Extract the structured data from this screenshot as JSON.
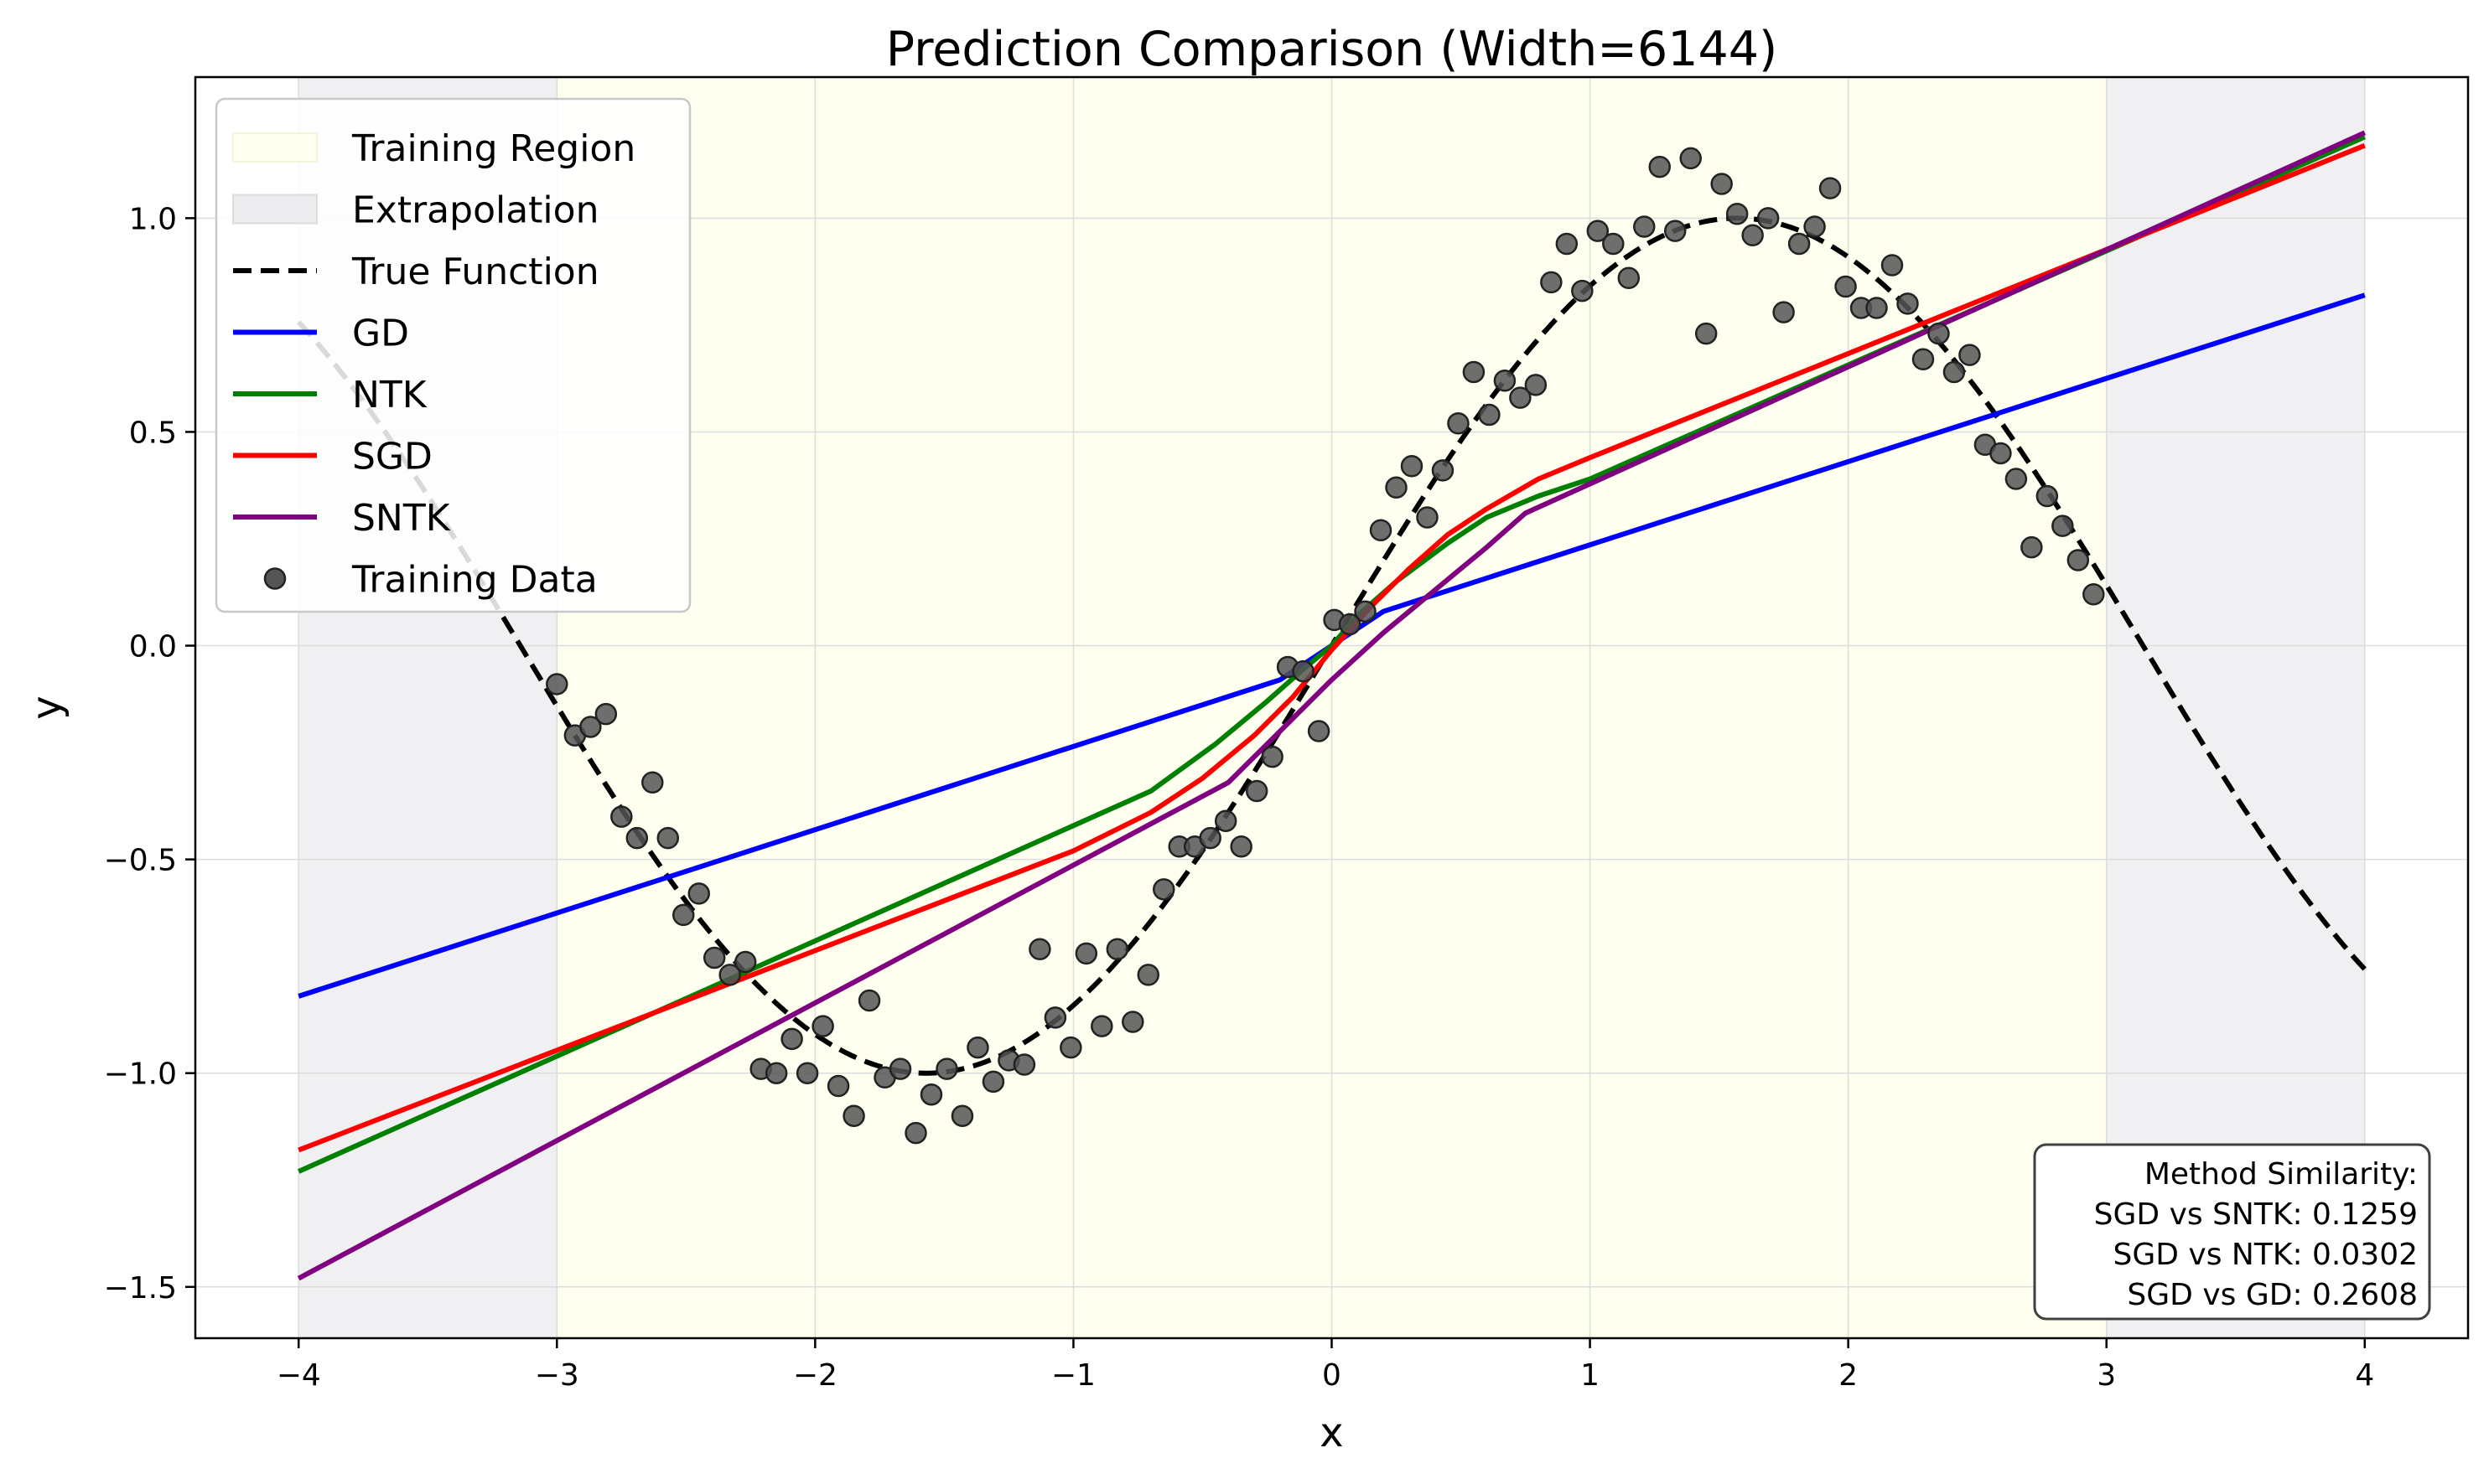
{
  "chart_data": {
    "type": "line",
    "title": "Prediction Comparison (Width=6144)",
    "xlabel": "x",
    "ylabel": "y",
    "xlim": [
      -4.4,
      4.4
    ],
    "ylim": [
      -1.62,
      1.33
    ],
    "grid": true,
    "x_ticks": [
      -4,
      -3,
      -2,
      -1,
      0,
      1,
      2,
      3,
      4
    ],
    "x_tick_labels": [
      "−4",
      "−3",
      "−2",
      "−1",
      "0",
      "1",
      "2",
      "3",
      "4"
    ],
    "y_ticks": [
      -1.5,
      -1.0,
      -0.5,
      0.0,
      0.5,
      1.0
    ],
    "y_tick_labels": [
      "−1.5",
      "−1.0",
      "−0.5",
      "0.0",
      "0.5",
      "1.0"
    ],
    "regions": [
      {
        "name": "Training Region",
        "x0": -3,
        "x1": 3,
        "color": "#fffff0"
      },
      {
        "name": "Extrapolation",
        "x0": -4,
        "x1": -3,
        "color": "#f0f0f2"
      },
      {
        "name": "Extrapolation",
        "x0": 3,
        "x1": 4,
        "color": "#f0f0f2"
      }
    ],
    "true_function": {
      "name": "True Function",
      "color": "#000000",
      "x_range": [
        -4,
        4
      ],
      "expression": "sin(x)"
    },
    "series": [
      {
        "name": "GD",
        "color": "#0000ff",
        "x": [
          -4,
          -0.2,
          0,
          0.2,
          4
        ],
        "y": [
          -0.82,
          -0.08,
          0.0,
          0.08,
          0.82
        ]
      },
      {
        "name": "NTK",
        "color": "#008000",
        "x": [
          -4,
          -0.7,
          -0.45,
          -0.25,
          -0.1,
          0,
          0.1,
          0.25,
          0.45,
          0.6,
          0.8,
          1.0,
          4
        ],
        "y": [
          -1.23,
          -0.34,
          -0.23,
          -0.13,
          -0.05,
          0.0,
          0.07,
          0.15,
          0.24,
          0.3,
          0.35,
          0.39,
          1.19
        ]
      },
      {
        "name": "SGD",
        "color": "#ff0000",
        "x": [
          -4,
          -1.0,
          -0.7,
          -0.5,
          -0.3,
          -0.15,
          0,
          0.15,
          0.3,
          0.45,
          0.6,
          0.8,
          1.0,
          4
        ],
        "y": [
          -1.18,
          -0.48,
          -0.39,
          -0.31,
          -0.21,
          -0.12,
          -0.01,
          0.09,
          0.18,
          0.26,
          0.32,
          0.39,
          0.44,
          1.17
        ]
      },
      {
        "name": "SNTK",
        "color": "#800080",
        "x": [
          -4,
          -0.4,
          -0.2,
          0,
          0.2,
          0.4,
          0.6,
          0.75,
          4
        ],
        "y": [
          -1.48,
          -0.32,
          -0.2,
          -0.08,
          0.03,
          0.13,
          0.23,
          0.31,
          1.2
        ]
      }
    ],
    "scatter": {
      "name": "Training Data",
      "color": "#555555",
      "points": [
        [
          -3.0,
          -0.09
        ],
        [
          -2.93,
          -0.21
        ],
        [
          -2.87,
          -0.19
        ],
        [
          -2.81,
          -0.16
        ],
        [
          -2.75,
          -0.4
        ],
        [
          -2.69,
          -0.45
        ],
        [
          -2.63,
          -0.32
        ],
        [
          -2.57,
          -0.45
        ],
        [
          -2.51,
          -0.63
        ],
        [
          -2.45,
          -0.58
        ],
        [
          -2.39,
          -0.73
        ],
        [
          -2.33,
          -0.77
        ],
        [
          -2.27,
          -0.74
        ],
        [
          -2.21,
          -0.99
        ],
        [
          -2.15,
          -1.0
        ],
        [
          -2.09,
          -0.92
        ],
        [
          -2.03,
          -1.0
        ],
        [
          -1.97,
          -0.89
        ],
        [
          -1.91,
          -1.03
        ],
        [
          -1.85,
          -1.1
        ],
        [
          -1.79,
          -0.83
        ],
        [
          -1.73,
          -1.01
        ],
        [
          -1.67,
          -0.99
        ],
        [
          -1.61,
          -1.14
        ],
        [
          -1.55,
          -1.05
        ],
        [
          -1.49,
          -0.99
        ],
        [
          -1.43,
          -1.1
        ],
        [
          -1.37,
          -0.94
        ],
        [
          -1.31,
          -1.02
        ],
        [
          -1.25,
          -0.97
        ],
        [
          -1.19,
          -0.98
        ],
        [
          -1.13,
          -0.71
        ],
        [
          -1.07,
          -0.87
        ],
        [
          -1.01,
          -0.94
        ],
        [
          -0.95,
          -0.72
        ],
        [
          -0.89,
          -0.89
        ],
        [
          -0.83,
          -0.71
        ],
        [
          -0.77,
          -0.88
        ],
        [
          -0.71,
          -0.77
        ],
        [
          -0.65,
          -0.57
        ],
        [
          -0.59,
          -0.47
        ],
        [
          -0.53,
          -0.47
        ],
        [
          -0.47,
          -0.45
        ],
        [
          -0.41,
          -0.41
        ],
        [
          -0.35,
          -0.47
        ],
        [
          -0.29,
          -0.34
        ],
        [
          -0.23,
          -0.26
        ],
        [
          -0.17,
          -0.05
        ],
        [
          -0.11,
          -0.06
        ],
        [
          -0.05,
          -0.2
        ],
        [
          0.01,
          0.06
        ],
        [
          0.07,
          0.05
        ],
        [
          0.13,
          0.08
        ],
        [
          0.19,
          0.27
        ],
        [
          0.25,
          0.37
        ],
        [
          0.31,
          0.42
        ],
        [
          0.37,
          0.3
        ],
        [
          0.43,
          0.41
        ],
        [
          0.49,
          0.52
        ],
        [
          0.55,
          0.64
        ],
        [
          0.61,
          0.54
        ],
        [
          0.67,
          0.62
        ],
        [
          0.73,
          0.58
        ],
        [
          0.79,
          0.61
        ],
        [
          0.85,
          0.85
        ],
        [
          0.91,
          0.94
        ],
        [
          0.97,
          0.83
        ],
        [
          1.03,
          0.97
        ],
        [
          1.09,
          0.94
        ],
        [
          1.15,
          0.86
        ],
        [
          1.21,
          0.98
        ],
        [
          1.27,
          1.12
        ],
        [
          1.33,
          0.97
        ],
        [
          1.39,
          1.14
        ],
        [
          1.45,
          0.73
        ],
        [
          1.51,
          1.08
        ],
        [
          1.57,
          1.01
        ],
        [
          1.63,
          0.96
        ],
        [
          1.69,
          1.0
        ],
        [
          1.75,
          0.78
        ],
        [
          1.81,
          0.94
        ],
        [
          1.87,
          0.98
        ],
        [
          1.93,
          1.07
        ],
        [
          1.99,
          0.84
        ],
        [
          2.05,
          0.79
        ],
        [
          2.11,
          0.79
        ],
        [
          2.17,
          0.89
        ],
        [
          2.23,
          0.8
        ],
        [
          2.29,
          0.67
        ],
        [
          2.35,
          0.73
        ],
        [
          2.41,
          0.64
        ],
        [
          2.47,
          0.68
        ],
        [
          2.53,
          0.47
        ],
        [
          2.59,
          0.45
        ],
        [
          2.65,
          0.39
        ],
        [
          2.71,
          0.23
        ],
        [
          2.77,
          0.35
        ],
        [
          2.83,
          0.28
        ],
        [
          2.89,
          0.2
        ],
        [
          2.95,
          0.12
        ]
      ]
    },
    "legend": {
      "placement": "upper-left",
      "entries": [
        "Training Region",
        "Extrapolation",
        "True Function",
        "GD",
        "NTK",
        "SGD",
        "SNTK",
        "Training Data"
      ]
    },
    "annotation": {
      "placement": "lower-right",
      "lines": [
        "Method Similarity:",
        "SGD vs SNTK: 0.1259",
        "SGD vs NTK: 0.0302",
        "SGD vs GD: 0.2608"
      ]
    }
  }
}
